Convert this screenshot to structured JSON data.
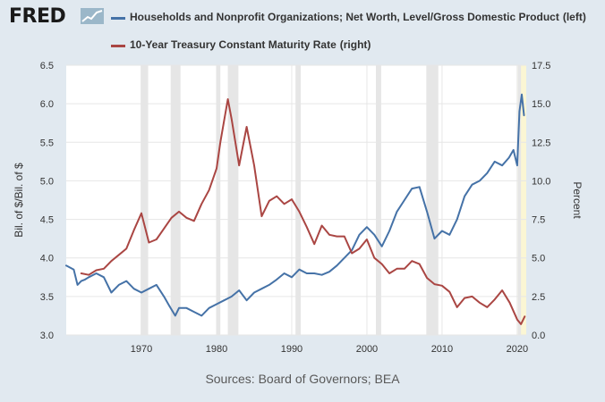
{
  "brand": {
    "logo_text": "FRED",
    "logo_icon": "line-chart-icon"
  },
  "chart_data": {
    "type": "line",
    "series": [
      {
        "name": "Households and Nonprofit Organizations; Net Worth, Level/Gross Domestic Product",
        "legend_suffix": "(left)",
        "axis": "left",
        "color": "#4572a7",
        "points": [
          [
            1960.0,
            3.9
          ],
          [
            1961.0,
            3.85
          ],
          [
            1961.5,
            3.65
          ],
          [
            1962.0,
            3.7
          ],
          [
            1962.5,
            3.72
          ],
          [
            1963.0,
            3.75
          ],
          [
            1964.0,
            3.8
          ],
          [
            1965.0,
            3.75
          ],
          [
            1966.0,
            3.55
          ],
          [
            1967.0,
            3.65
          ],
          [
            1968.0,
            3.7
          ],
          [
            1969.0,
            3.6
          ],
          [
            1970.0,
            3.55
          ],
          [
            1971.0,
            3.6
          ],
          [
            1972.0,
            3.65
          ],
          [
            1973.0,
            3.5
          ],
          [
            1973.7,
            3.38
          ],
          [
            1974.5,
            3.25
          ],
          [
            1975.0,
            3.35
          ],
          [
            1976.0,
            3.35
          ],
          [
            1977.0,
            3.3
          ],
          [
            1978.0,
            3.25
          ],
          [
            1979.0,
            3.35
          ],
          [
            1980.0,
            3.4
          ],
          [
            1981.0,
            3.45
          ],
          [
            1982.0,
            3.5
          ],
          [
            1983.0,
            3.58
          ],
          [
            1984.0,
            3.45
          ],
          [
            1985.0,
            3.55
          ],
          [
            1986.0,
            3.6
          ],
          [
            1987.0,
            3.65
          ],
          [
            1988.0,
            3.72
          ],
          [
            1989.0,
            3.8
          ],
          [
            1990.0,
            3.75
          ],
          [
            1991.0,
            3.85
          ],
          [
            1992.0,
            3.8
          ],
          [
            1993.0,
            3.8
          ],
          [
            1994.0,
            3.78
          ],
          [
            1995.0,
            3.82
          ],
          [
            1996.0,
            3.9
          ],
          [
            1997.0,
            4.0
          ],
          [
            1998.0,
            4.1
          ],
          [
            1999.0,
            4.3
          ],
          [
            2000.0,
            4.4
          ],
          [
            2001.0,
            4.3
          ],
          [
            2002.0,
            4.15
          ],
          [
            2003.0,
            4.35
          ],
          [
            2004.0,
            4.6
          ],
          [
            2005.0,
            4.75
          ],
          [
            2006.0,
            4.9
          ],
          [
            2007.0,
            4.92
          ],
          [
            2008.0,
            4.6
          ],
          [
            2009.0,
            4.25
          ],
          [
            2010.0,
            4.35
          ],
          [
            2011.0,
            4.3
          ],
          [
            2012.0,
            4.5
          ],
          [
            2013.0,
            4.8
          ],
          [
            2014.0,
            4.95
          ],
          [
            2015.0,
            5.0
          ],
          [
            2016.0,
            5.1
          ],
          [
            2017.0,
            5.25
          ],
          [
            2018.0,
            5.2
          ],
          [
            2018.9,
            5.3
          ],
          [
            2019.5,
            5.4
          ],
          [
            2020.0,
            5.2
          ],
          [
            2020.3,
            5.9
          ],
          [
            2020.6,
            6.12
          ],
          [
            2020.9,
            5.85
          ]
        ]
      },
      {
        "name": "10-Year Treasury Constant Maturity Rate",
        "legend_suffix": "(right)",
        "axis": "right",
        "color": "#aa4643",
        "points": [
          [
            1962.0,
            4.0
          ],
          [
            1963.0,
            3.9
          ],
          [
            1964.0,
            4.2
          ],
          [
            1965.0,
            4.3
          ],
          [
            1966.0,
            4.8
          ],
          [
            1967.0,
            5.2
          ],
          [
            1968.0,
            5.6
          ],
          [
            1969.0,
            6.8
          ],
          [
            1970.0,
            7.9
          ],
          [
            1971.0,
            6.0
          ],
          [
            1972.0,
            6.2
          ],
          [
            1973.0,
            6.9
          ],
          [
            1974.0,
            7.6
          ],
          [
            1975.0,
            8.0
          ],
          [
            1976.0,
            7.6
          ],
          [
            1977.0,
            7.4
          ],
          [
            1978.0,
            8.5
          ],
          [
            1979.0,
            9.4
          ],
          [
            1980.0,
            10.8
          ],
          [
            1980.5,
            12.5
          ],
          [
            1981.0,
            13.9
          ],
          [
            1981.5,
            15.3
          ],
          [
            1982.0,
            14.0
          ],
          [
            1983.0,
            11.0
          ],
          [
            1984.0,
            13.5
          ],
          [
            1985.0,
            11.0
          ],
          [
            1986.0,
            7.7
          ],
          [
            1987.0,
            8.7
          ],
          [
            1988.0,
            9.0
          ],
          [
            1989.0,
            8.5
          ],
          [
            1990.0,
            8.8
          ],
          [
            1991.0,
            8.0
          ],
          [
            1992.0,
            7.0
          ],
          [
            1993.0,
            5.9
          ],
          [
            1994.0,
            7.1
          ],
          [
            1995.0,
            6.5
          ],
          [
            1996.0,
            6.4
          ],
          [
            1997.0,
            6.4
          ],
          [
            1998.0,
            5.3
          ],
          [
            1999.0,
            5.6
          ],
          [
            2000.0,
            6.2
          ],
          [
            2001.0,
            5.0
          ],
          [
            2002.0,
            4.6
          ],
          [
            2003.0,
            4.0
          ],
          [
            2004.0,
            4.3
          ],
          [
            2005.0,
            4.3
          ],
          [
            2006.0,
            4.8
          ],
          [
            2007.0,
            4.6
          ],
          [
            2008.0,
            3.7
          ],
          [
            2009.0,
            3.3
          ],
          [
            2010.0,
            3.2
          ],
          [
            2011.0,
            2.8
          ],
          [
            2012.0,
            1.8
          ],
          [
            2013.0,
            2.4
          ],
          [
            2014.0,
            2.5
          ],
          [
            2015.0,
            2.1
          ],
          [
            2016.0,
            1.8
          ],
          [
            2017.0,
            2.3
          ],
          [
            2018.0,
            2.9
          ],
          [
            2019.0,
            2.1
          ],
          [
            2020.0,
            1.0
          ],
          [
            2020.5,
            0.7
          ],
          [
            2021.0,
            1.2
          ]
        ]
      }
    ],
    "recessions": [
      [
        1969.9,
        1970.9
      ],
      [
        1973.9,
        1975.2
      ],
      [
        1980.0,
        1980.5
      ],
      [
        1981.5,
        1982.9
      ],
      [
        1990.5,
        1991.2
      ],
      [
        2001.2,
        2001.9
      ],
      [
        2007.9,
        2009.5
      ],
      [
        2020.1,
        2020.5
      ]
    ],
    "forecast_band": [
      2020.1,
      2021.2
    ],
    "x_range": [
      1960,
      2021.2
    ],
    "x_ticks": [
      "1970",
      "1980",
      "1990",
      "2000",
      "2010",
      "2020"
    ],
    "y_left": {
      "label": "Bil. of $/Bil. of $",
      "range": [
        3.0,
        6.5
      ],
      "ticks": [
        "3.0",
        "3.5",
        "4.0",
        "4.5",
        "5.0",
        "5.5",
        "6.0",
        "6.5"
      ]
    },
    "y_right": {
      "label": "Percent",
      "range": [
        0.0,
        17.5
      ],
      "ticks": [
        "0.0",
        "2.5",
        "5.0",
        "7.5",
        "10.0",
        "12.5",
        "15.0",
        "17.5"
      ]
    },
    "grid": true,
    "sources": "Sources: Board of Governors; BEA"
  }
}
